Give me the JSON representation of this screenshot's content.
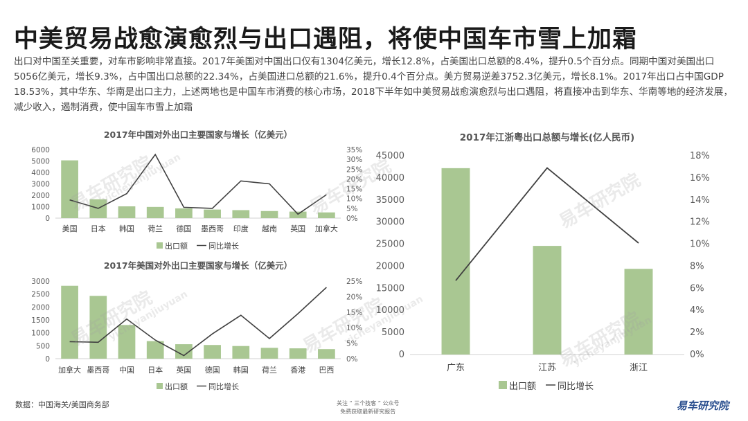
{
  "header": {
    "title": "中美贸易战愈演愈烈与出口遇阻，将使中国车市雪上加霜",
    "paragraph": "出口对中国至关重要，对车市影响非常直接。2017年美国对中国出口仅有1304亿美元，增长12.8%，占美国出口总额的8.4%，提升0.5个百分点。同期中国对美国出口5056亿美元，增长9.3%，占中国出口总额的22.34%，占美国进口总额的21.6%，提升0.4个百分点。美方贸易逆差3752.3亿美元，增长8.1%。2017年出口占中国GDP 18.53%，其中华东、华南是出口主力，上述两地也是中国车市消费的核心市场，2018下半年如中美贸易战愈演愈烈与出口遇阻，将直接冲击到华东、华南等地的经济发展，减少收入，遏制消费，使中国车市雪上加霜"
  },
  "footer": {
    "source": "数据：中国海关/美国商务部",
    "center_line1": "关注 “ 三个技客 ” 公众号",
    "center_line2": "免费获取最新研究报告",
    "logo": "易车研究院"
  },
  "watermark": {
    "cn": "易车研究院",
    "en": "yicheyanjiuyuan"
  },
  "colors": {
    "bar": "#a9c792",
    "line": "#404040",
    "axis": "#d0d0d0"
  },
  "chart_data": [
    {
      "id": "china",
      "type": "bar",
      "title": "2017年中国对外出口主要国家与增长（亿美元）",
      "categories": [
        "美国",
        "日本",
        "韩国",
        "荷兰",
        "德国",
        "墨西哥",
        "印度",
        "越南",
        "英国",
        "加拿大"
      ],
      "series": [
        {
          "name": "出口额",
          "type": "bar",
          "axis": "left",
          "values": [
            5056,
            1650,
            1030,
            980,
            850,
            750,
            700,
            620,
            570,
            500
          ]
        },
        {
          "name": "同比增长",
          "type": "line",
          "axis": "right",
          "values": [
            9.3,
            5.0,
            12.5,
            32.5,
            5.5,
            5.0,
            19.0,
            17.5,
            2.0,
            12.0
          ]
        }
      ],
      "ylim": [
        0,
        6000
      ],
      "yticks": [
        "0",
        "1000",
        "2000",
        "3000",
        "4000",
        "5000",
        "6000"
      ],
      "y2lim": [
        0,
        35
      ],
      "y2ticks": [
        "0%",
        "5%",
        "10%",
        "15%",
        "20%",
        "25%",
        "30%",
        "35%"
      ],
      "legend": [
        "出口额",
        "同比增长"
      ],
      "legend_position": "bottom"
    },
    {
      "id": "usa",
      "type": "bar",
      "title": "2017年美国对外出口主要国家与增长（亿美元）",
      "categories": [
        "加拿大",
        "墨西哥",
        "中国",
        "日本",
        "英国",
        "德国",
        "韩国",
        "荷兰",
        "香港",
        "巴西"
      ],
      "series": [
        {
          "name": "出口额",
          "type": "bar",
          "axis": "left",
          "values": [
            2820,
            2430,
            1304,
            680,
            560,
            530,
            490,
            420,
            400,
            370
          ]
        },
        {
          "name": "同比增长",
          "type": "line",
          "axis": "right",
          "values": [
            5.5,
            5.3,
            12.8,
            6.0,
            1.0,
            8.0,
            14.0,
            6.5,
            14.5,
            23.0
          ]
        }
      ],
      "ylim": [
        0,
        3000
      ],
      "yticks": [
        "0",
        "500",
        "1000",
        "1500",
        "2000",
        "2500",
        "3000"
      ],
      "y2lim": [
        0,
        25
      ],
      "y2ticks": [
        "0%",
        "5%",
        "10%",
        "15%",
        "20%",
        "25%"
      ],
      "legend": [
        "出口额",
        "同比增长"
      ],
      "legend_position": "bottom"
    },
    {
      "id": "provinces",
      "type": "bar",
      "title": "2017年江浙粤出口总额与增长(亿人民币)",
      "categories": [
        "广东",
        "江苏",
        "浙江"
      ],
      "series": [
        {
          "name": "出口额",
          "type": "bar",
          "axis": "left",
          "values": [
            42200,
            24600,
            19400
          ]
        },
        {
          "name": "同比增长",
          "type": "line",
          "axis": "right",
          "values": [
            6.7,
            16.9,
            10.1
          ]
        }
      ],
      "ylim": [
        0,
        45000
      ],
      "yticks": [
        "0",
        "5000",
        "10000",
        "15000",
        "20000",
        "25000",
        "30000",
        "35000",
        "40000",
        "45000"
      ],
      "y2lim": [
        0,
        18
      ],
      "y2ticks": [
        "0%",
        "2%",
        "4%",
        "6%",
        "8%",
        "10%",
        "12%",
        "14%",
        "16%",
        "18%"
      ],
      "legend": [
        "出口额",
        "同比增长"
      ],
      "legend_position": "bottom"
    }
  ]
}
